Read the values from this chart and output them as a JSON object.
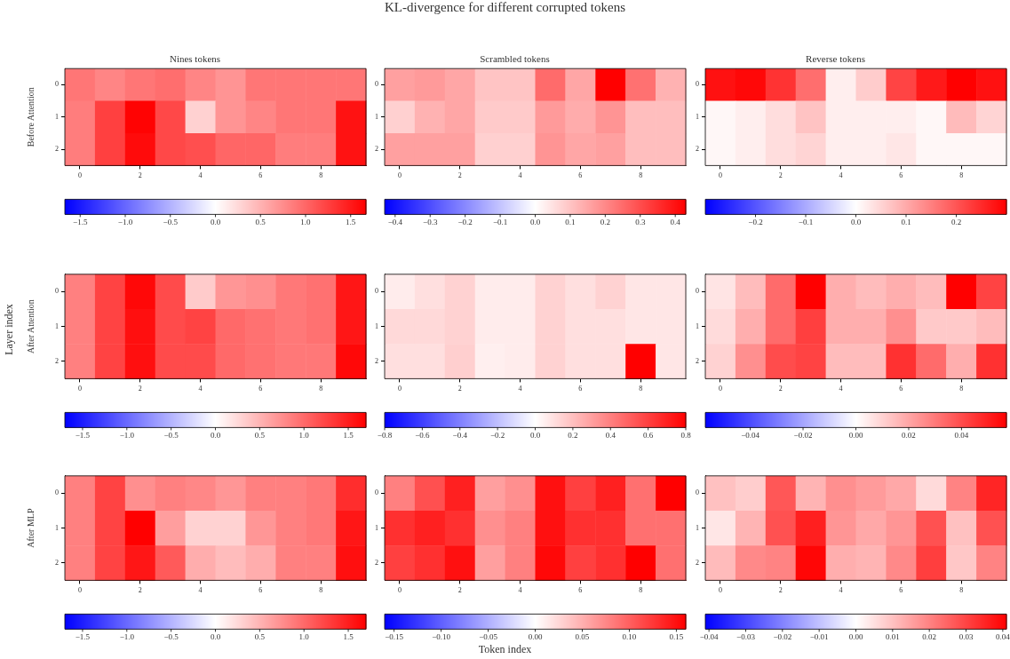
{
  "chart_data": [
    {
      "type": "heatmap",
      "title": "Nines tokens",
      "ylabel": "Before Attention",
      "annotations": [
        "KL-divergence for different corrupted tokens",
        "Layer index",
        "Token index"
      ],
      "categories": [
        "0",
        null,
        "2",
        null,
        "4",
        null,
        "6",
        null,
        "8",
        null
      ],
      "y_categories": [
        "0",
        "1",
        "2"
      ],
      "cells": [
        [
          0.9,
          0.8,
          0.9,
          0.95,
          0.8,
          0.7,
          0.9,
          0.9,
          0.9,
          0.9
        ],
        [
          0.85,
          1.25,
          1.65,
          1.2,
          0.3,
          0.7,
          0.8,
          0.9,
          0.9,
          1.55
        ],
        [
          0.85,
          1.25,
          1.6,
          1.2,
          1.15,
          1.0,
          1.0,
          0.85,
          0.85,
          1.55
        ]
      ],
      "clim": [
        -1.67,
        1.67
      ],
      "cticks": [
        {
          "value": -1.5,
          "label": "−1.5"
        },
        {
          "value": -1,
          "label": "−1.0"
        },
        {
          "value": -0.5,
          "label": "−0.5"
        },
        {
          "value": 0,
          "label": "0.0"
        },
        0.5,
        {
          "value": 1,
          "label": "1.0"
        },
        1.5
      ]
    },
    {
      "type": "heatmap",
      "title": "Scrambled tokens",
      "categories": [
        "0",
        null,
        "2",
        null,
        "4",
        null,
        "6",
        null,
        "8",
        null
      ],
      "y_categories": [
        "0",
        "1",
        "2"
      ],
      "cells": [
        [
          0.16,
          0.17,
          0.15,
          0.1,
          0.1,
          0.25,
          0.15,
          0.43,
          0.24,
          0.13
        ],
        [
          0.08,
          0.13,
          0.15,
          0.09,
          0.09,
          0.17,
          0.14,
          0.18,
          0.11,
          0.11
        ],
        [
          0.16,
          0.16,
          0.16,
          0.08,
          0.08,
          0.18,
          0.15,
          0.16,
          0.11,
          0.11
        ]
      ],
      "clim": [
        -0.43,
        0.43
      ],
      "cticks": [
        {
          "value": -0.4,
          "label": "−0.4"
        },
        {
          "value": -0.3,
          "label": "−0.3"
        },
        {
          "value": -0.2,
          "label": "−0.2"
        },
        {
          "value": -0.1,
          "label": "−0.1"
        },
        {
          "value": 0,
          "label": "0.0"
        },
        0.1,
        0.2,
        0.3,
        0.4
      ]
    },
    {
      "type": "heatmap",
      "title": "Reverse tokens",
      "categories": [
        "0",
        null,
        "2",
        null,
        "4",
        null,
        "6",
        null,
        "8",
        null
      ],
      "y_categories": [
        "0",
        "1",
        "2"
      ],
      "cells": [
        [
          0.28,
          0.29,
          0.24,
          0.17,
          0.02,
          0.06,
          0.22,
          0.27,
          0.3,
          0.28
        ],
        [
          0.01,
          0.02,
          0.04,
          0.07,
          0.02,
          0.02,
          0.02,
          0.01,
          0.08,
          0.05
        ],
        [
          0.01,
          0.02,
          0.04,
          0.05,
          0.02,
          0.02,
          0.03,
          0.01,
          0.01,
          0.01
        ]
      ],
      "clim": [
        -0.3,
        0.3
      ],
      "cticks": [
        {
          "value": -0.2,
          "label": "−0.2"
        },
        {
          "value": -0.1,
          "label": "−0.1"
        },
        {
          "value": 0,
          "label": "0.0"
        },
        0.1,
        0.2
      ]
    },
    {
      "type": "heatmap",
      "ylabel": "After Attention",
      "categories": [
        "0",
        null,
        "2",
        null,
        "4",
        null,
        "6",
        null,
        "8",
        null
      ],
      "y_categories": [
        "0",
        "1",
        "2"
      ],
      "cells": [
        [
          0.85,
          1.25,
          1.65,
          1.2,
          0.35,
          0.7,
          0.75,
          0.9,
          0.95,
          1.55
        ],
        [
          0.85,
          1.25,
          1.6,
          1.2,
          1.25,
          1.0,
          0.95,
          0.9,
          0.95,
          1.55
        ],
        [
          0.85,
          1.25,
          1.6,
          1.2,
          1.2,
          1.0,
          0.95,
          0.9,
          0.9,
          1.65
        ]
      ],
      "clim": [
        -1.7,
        1.7
      ],
      "cticks": [
        {
          "value": -1.5,
          "label": "−1.5"
        },
        {
          "value": -1,
          "label": "−1.0"
        },
        {
          "value": -0.5,
          "label": "−0.5"
        },
        {
          "value": 0,
          "label": "0.0"
        },
        0.5,
        {
          "value": 1,
          "label": "1.0"
        },
        1.5
      ]
    },
    {
      "type": "heatmap",
      "categories": [
        "0",
        null,
        "2",
        null,
        "4",
        null,
        "6",
        null,
        "8",
        null
      ],
      "y_categories": [
        "0",
        "1",
        "2"
      ],
      "cells": [
        [
          0.06,
          0.1,
          0.14,
          0.06,
          0.06,
          0.14,
          0.1,
          0.14,
          0.08,
          0.08
        ],
        [
          0.12,
          0.12,
          0.14,
          0.06,
          0.06,
          0.14,
          0.1,
          0.1,
          0.08,
          0.08
        ],
        [
          0.1,
          0.1,
          0.15,
          0.05,
          0.06,
          0.14,
          0.1,
          0.1,
          0.8,
          0.08
        ]
      ],
      "clim": [
        -0.8,
        0.8
      ],
      "cticks": [
        {
          "value": -0.8,
          "label": "−0.8"
        },
        {
          "value": -0.6,
          "label": "−0.6"
        },
        {
          "value": -0.4,
          "label": "−0.4"
        },
        {
          "value": -0.2,
          "label": "−0.2"
        },
        {
          "value": 0,
          "label": "0.0"
        },
        0.2,
        0.4,
        0.6,
        0.8
      ]
    },
    {
      "type": "heatmap",
      "categories": [
        "0",
        null,
        "2",
        null,
        "4",
        null,
        "6",
        null,
        "8",
        null
      ],
      "y_categories": [
        "0",
        "1",
        "2"
      ],
      "cells": [
        [
          0.006,
          0.015,
          0.033,
          0.057,
          0.018,
          0.015,
          0.018,
          0.015,
          0.057,
          0.042
        ],
        [
          0.008,
          0.018,
          0.033,
          0.043,
          0.018,
          0.018,
          0.025,
          0.012,
          0.012,
          0.015
        ],
        [
          0.01,
          0.025,
          0.04,
          0.042,
          0.015,
          0.015,
          0.046,
          0.033,
          0.018,
          0.046
        ]
      ],
      "clim": [
        -0.057,
        0.057
      ],
      "cticks": [
        {
          "value": -0.04,
          "label": "−0.04"
        },
        {
          "value": -0.02,
          "label": "−0.02"
        },
        {
          "value": 0,
          "label": "0.00"
        },
        0.02,
        0.04
      ]
    },
    {
      "type": "heatmap",
      "ylabel": "After MLP",
      "categories": [
        "0",
        null,
        "2",
        null,
        "4",
        null,
        "6",
        null,
        "8",
        null
      ],
      "y_categories": [
        "0",
        "1",
        "2"
      ],
      "cells": [
        [
          0.85,
          1.25,
          0.75,
          0.85,
          0.8,
          0.7,
          0.85,
          0.85,
          0.9,
          1.4
        ],
        [
          0.85,
          1.25,
          1.7,
          0.65,
          0.3,
          0.3,
          0.7,
          0.85,
          0.9,
          1.55
        ],
        [
          0.85,
          1.25,
          1.55,
          1.1,
          0.55,
          0.45,
          0.55,
          0.85,
          0.85,
          1.6
        ]
      ],
      "clim": [
        -1.7,
        1.7
      ],
      "cticks": [
        {
          "value": -1.5,
          "label": "−1.5"
        },
        {
          "value": -1,
          "label": "−1.0"
        },
        {
          "value": -0.5,
          "label": "−0.5"
        },
        {
          "value": 0,
          "label": "0.0"
        },
        0.5,
        {
          "value": 1,
          "label": "1.0"
        },
        1.5
      ]
    },
    {
      "type": "heatmap",
      "categories": [
        "0",
        null,
        "2",
        null,
        "4",
        null,
        "6",
        null,
        "8",
        null
      ],
      "y_categories": [
        "0",
        "1",
        "2"
      ],
      "cells": [
        [
          0.08,
          0.11,
          0.14,
          0.06,
          0.07,
          0.15,
          0.12,
          0.14,
          0.09,
          0.16
        ],
        [
          0.13,
          0.14,
          0.13,
          0.07,
          0.08,
          0.15,
          0.13,
          0.13,
          0.09,
          0.09
        ],
        [
          0.12,
          0.13,
          0.15,
          0.06,
          0.08,
          0.155,
          0.12,
          0.13,
          0.16,
          0.09
        ]
      ],
      "clim": [
        -0.16,
        0.16
      ],
      "cticks": [
        {
          "value": -0.15,
          "label": "−0.15"
        },
        {
          "value": -0.1,
          "label": "−0.10"
        },
        {
          "value": -0.05,
          "label": "−0.05"
        },
        {
          "value": 0,
          "label": "0.00"
        },
        0.05,
        {
          "value": 0.1,
          "label": "0.10"
        },
        0.15
      ]
    },
    {
      "type": "heatmap",
      "categories": [
        "0",
        null,
        "2",
        null,
        "4",
        null,
        "6",
        null,
        "8",
        null
      ],
      "y_categories": [
        "0",
        "1",
        "2"
      ],
      "cells": [
        [
          0.01,
          0.008,
          0.027,
          0.012,
          0.018,
          0.016,
          0.014,
          0.006,
          0.02,
          0.035
        ],
        [
          0.004,
          0.012,
          0.028,
          0.036,
          0.017,
          0.014,
          0.017,
          0.028,
          0.01,
          0.028
        ],
        [
          0.011,
          0.019,
          0.02,
          0.04,
          0.013,
          0.012,
          0.019,
          0.031,
          0.009,
          0.02
        ]
      ],
      "clim": [
        -0.041,
        0.041
      ],
      "cticks": [
        {
          "value": -0.04,
          "label": "−0.04"
        },
        {
          "value": -0.03,
          "label": "−0.03"
        },
        {
          "value": -0.02,
          "label": "−0.02"
        },
        {
          "value": -0.01,
          "label": "−0.01"
        },
        {
          "value": 0,
          "label": "0.00"
        },
        0.01,
        0.02,
        0.03,
        0.04
      ]
    }
  ]
}
